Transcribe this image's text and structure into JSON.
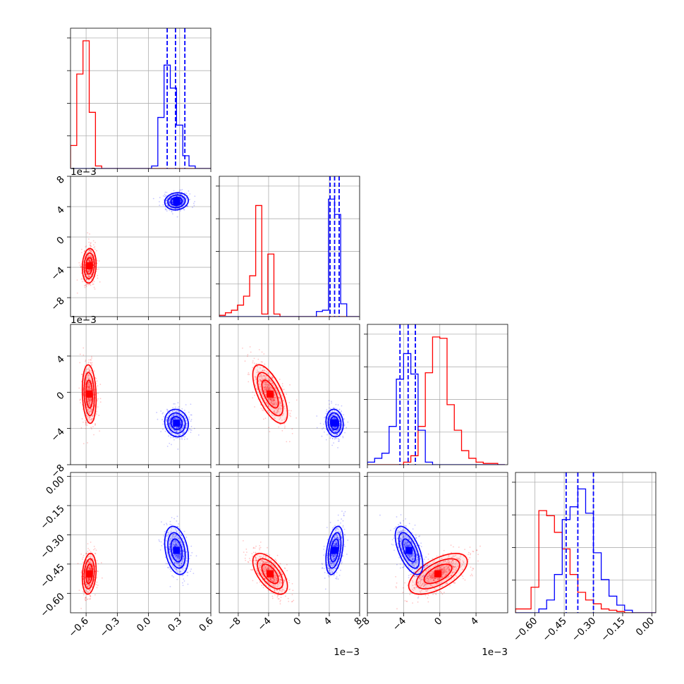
{
  "chart_data": {
    "type": "corner",
    "grid": true,
    "series_colors": {
      "red": "#ff0000",
      "blue": "#0000ff"
    },
    "series": [
      {
        "color": "red",
        "means": [
          -0.57,
          -0.0038,
          -0.0002,
          -0.5
        ],
        "stds": [
          0.035,
          0.0012,
          0.0017,
          0.055
        ],
        "corr": {
          "0-1": 0.1,
          "0-2": -0.15,
          "1-2": -0.65,
          "0-3": 0.2,
          "1-3": -0.6,
          "2-3": 0.6
        }
      },
      {
        "color": "blue",
        "means": [
          0.27,
          0.0047,
          -0.0034,
          -0.38
        ],
        "stds": [
          0.06,
          0.0006,
          0.0008,
          0.065
        ],
        "corr": {
          "0-1": 0.1,
          "0-2": -0.1,
          "1-2": -0.1,
          "0-3": -0.3,
          "1-3": 0.4,
          "2-3": -0.6
        },
        "quantile_lines": [
          [
            0.18,
            0.26,
            0.35
          ],
          [
            0.0041,
            0.0047,
            0.0053
          ],
          [
            -0.0044,
            -0.0035,
            -0.0027
          ],
          [
            -0.44,
            -0.38,
            -0.3
          ]
        ]
      }
    ],
    "params": [
      {
        "range": [
          -0.75,
          0.6
        ],
        "ticks": [
          -0.6,
          -0.3,
          0.0,
          0.3,
          0.6
        ],
        "tick_labels": [
          "−0.6",
          "−0.3",
          "0.0",
          "0.3",
          "0.6"
        ],
        "offset": ""
      },
      {
        "range": [
          -0.0105,
          0.008
        ],
        "ticks": [
          -0.008,
          -0.004,
          0.0,
          0.004,
          0.008
        ],
        "tick_labels": [
          "−8",
          "−4",
          "0",
          "4",
          "8"
        ],
        "offset": "1e−3"
      },
      {
        "range": [
          -0.008,
          0.0075
        ],
        "ticks": [
          -0.008,
          -0.004,
          0.0,
          0.004
        ],
        "tick_labels": [
          "−8",
          "−4",
          "0",
          "4"
        ],
        "offset": "1e−3"
      },
      {
        "range": [
          -0.7,
          0.02
        ],
        "ticks": [
          -0.6,
          -0.45,
          -0.3,
          -0.15,
          0.0
        ],
        "tick_labels": [
          "−0.60",
          "−0.45",
          "−0.30",
          "−0.15",
          "0.00"
        ],
        "offset": ""
      }
    ],
    "histograms": [
      {
        "bins": [
          -0.75,
          -0.72,
          -0.69,
          -0.66,
          -0.63,
          -0.6,
          -0.57,
          -0.54,
          -0.51,
          -0.48,
          -0.45,
          -0.42,
          -0.39,
          -0.36,
          -0.33,
          -0.3,
          -0.27,
          -0.24,
          -0.21,
          -0.18,
          -0.15,
          -0.12,
          -0.09,
          -0.06,
          -0.03,
          0.0,
          0.03,
          0.06,
          0.09,
          0.12,
          0.15,
          0.18,
          0.21,
          0.24,
          0.27,
          0.3,
          0.33,
          0.36,
          0.39,
          0.42,
          0.45,
          0.48,
          0.51,
          0.54,
          0.57,
          0.6
        ],
        "red": [
          0.18,
          0.18,
          0.74,
          0.74,
          1.0,
          1.0,
          0.44,
          0.44,
          0.02,
          0.02,
          0,
          0,
          0,
          0,
          0,
          0,
          0,
          0,
          0,
          0,
          0,
          0,
          0,
          0,
          0,
          0,
          0,
          0,
          0,
          0,
          0,
          0,
          0,
          0,
          0,
          0,
          0,
          0,
          0,
          0,
          0,
          0,
          0,
          0,
          0
        ],
        "blue": [
          0,
          0,
          0,
          0,
          0,
          0,
          0,
          0,
          0,
          0,
          0,
          0,
          0,
          0,
          0,
          0,
          0,
          0,
          0,
          0,
          0,
          0,
          0,
          0,
          0,
          0,
          0.02,
          0.02,
          0.4,
          0.4,
          0.81,
          0.81,
          0.63,
          0.63,
          0.34,
          0.34,
          0.1,
          0.1,
          0.02,
          0.02,
          0.0,
          0.0,
          0,
          0,
          0
        ]
      },
      {
        "bins": [
          -0.0105,
          -0.0097,
          -0.0089,
          -0.0081,
          -0.0073,
          -0.0065,
          -0.0057,
          -0.0049,
          -0.0041,
          -0.0033,
          -0.0025,
          -0.0017,
          -0.0009,
          -0.0001,
          0.0007,
          0.0015,
          0.0023,
          0.0031,
          0.0039,
          0.0047,
          0.0055,
          0.0063,
          0.0071,
          0.0079
        ],
        "red": [
          0.01,
          0.03,
          0.05,
          0.09,
          0.16,
          0.32,
          0.87,
          0.02,
          0.49,
          0.02,
          0.0,
          0,
          0,
          0,
          0,
          0,
          0,
          0,
          0,
          0,
          0,
          0,
          0
        ],
        "blue": [
          0,
          0,
          0,
          0,
          0,
          0,
          0,
          0,
          0,
          0,
          0,
          0,
          0,
          0,
          0,
          0,
          0.04,
          0.05,
          0.92,
          0.8,
          0.1,
          0.0,
          0
        ]
      },
      {
        "bins": [
          -0.008,
          -0.0072,
          -0.0064,
          -0.0056,
          -0.0048,
          -0.004,
          -0.0032,
          -0.0024,
          -0.0016,
          -0.0008,
          0.0,
          0.0008,
          0.0016,
          0.0024,
          0.0032,
          0.004,
          0.0048,
          0.0056,
          0.0064,
          0.0072
        ],
        "red": [
          0,
          0,
          0,
          0,
          0.0,
          0.02,
          0.07,
          0.3,
          0.72,
          1.0,
          0.99,
          0.47,
          0.27,
          0.11,
          0.05,
          0.02,
          0.01,
          0.01,
          0.0
        ],
        "blue": [
          0.02,
          0.05,
          0.09,
          0.3,
          0.67,
          0.87,
          0.71,
          0.27,
          0.02,
          0.0,
          0,
          0,
          0,
          0,
          0,
          0,
          0,
          0,
          0
        ]
      },
      {
        "bins": [
          -0.7,
          -0.66,
          -0.62,
          -0.58,
          -0.54,
          -0.5,
          -0.46,
          -0.42,
          -0.38,
          -0.34,
          -0.3,
          -0.26,
          -0.22,
          -0.18,
          -0.14,
          -0.1,
          -0.06,
          -0.02,
          0.02
        ],
        "red": [
          0.03,
          0.03,
          0.2,
          0.8,
          0.76,
          0.63,
          0.5,
          0.3,
          0.16,
          0.1,
          0.07,
          0.03,
          0.02,
          0.01,
          0.0,
          0,
          0,
          0
        ],
        "blue": [
          0,
          0,
          0,
          0.03,
          0.1,
          0.3,
          0.73,
          0.83,
          0.97,
          0.78,
          0.47,
          0.26,
          0.13,
          0.06,
          0.02,
          0.0,
          0,
          0
        ]
      }
    ]
  }
}
